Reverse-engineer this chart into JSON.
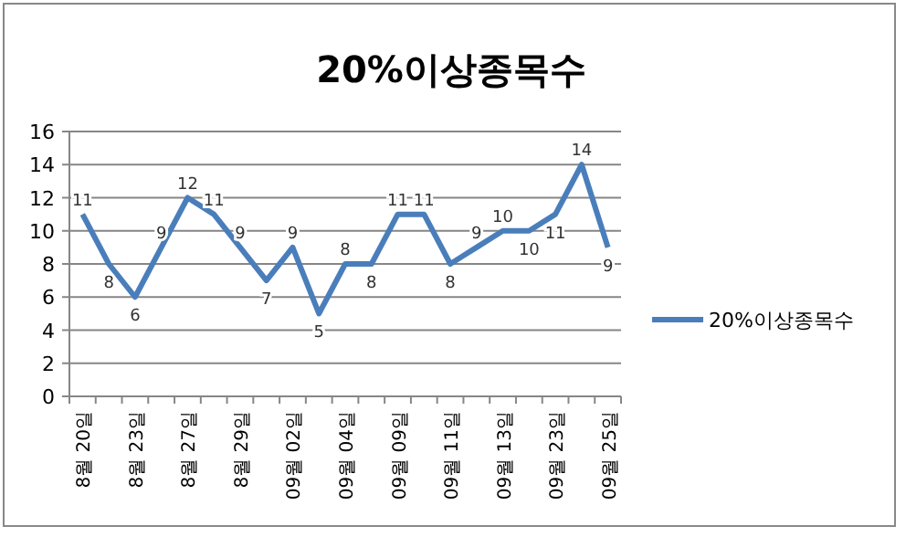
{
  "chart_data": {
    "type": "line",
    "title": "20%이상종목수",
    "categories": [
      "8월 20일",
      null,
      "8월 23일",
      null,
      "8월 27일",
      null,
      "8월 29일",
      null,
      "09월 02일",
      null,
      "09월 04일",
      null,
      "09월 09일",
      null,
      "09월 11일",
      null,
      "09월 13일",
      null,
      "09월 23일",
      null,
      "09월 25일"
    ],
    "series": [
      {
        "name": "20%이상종목수",
        "color": "#4a7ebb",
        "values": [
          11,
          8,
          6,
          9,
          12,
          11,
          9,
          7,
          9,
          5,
          8,
          8,
          11,
          11,
          8,
          9,
          10,
          10,
          11,
          14,
          9
        ]
      }
    ],
    "ylim": [
      0,
      16
    ],
    "yticks": [
      0,
      2,
      4,
      6,
      8,
      10,
      12,
      14,
      16
    ],
    "grid": "y",
    "legend": "right",
    "data_labels": true,
    "marker": "none"
  }
}
